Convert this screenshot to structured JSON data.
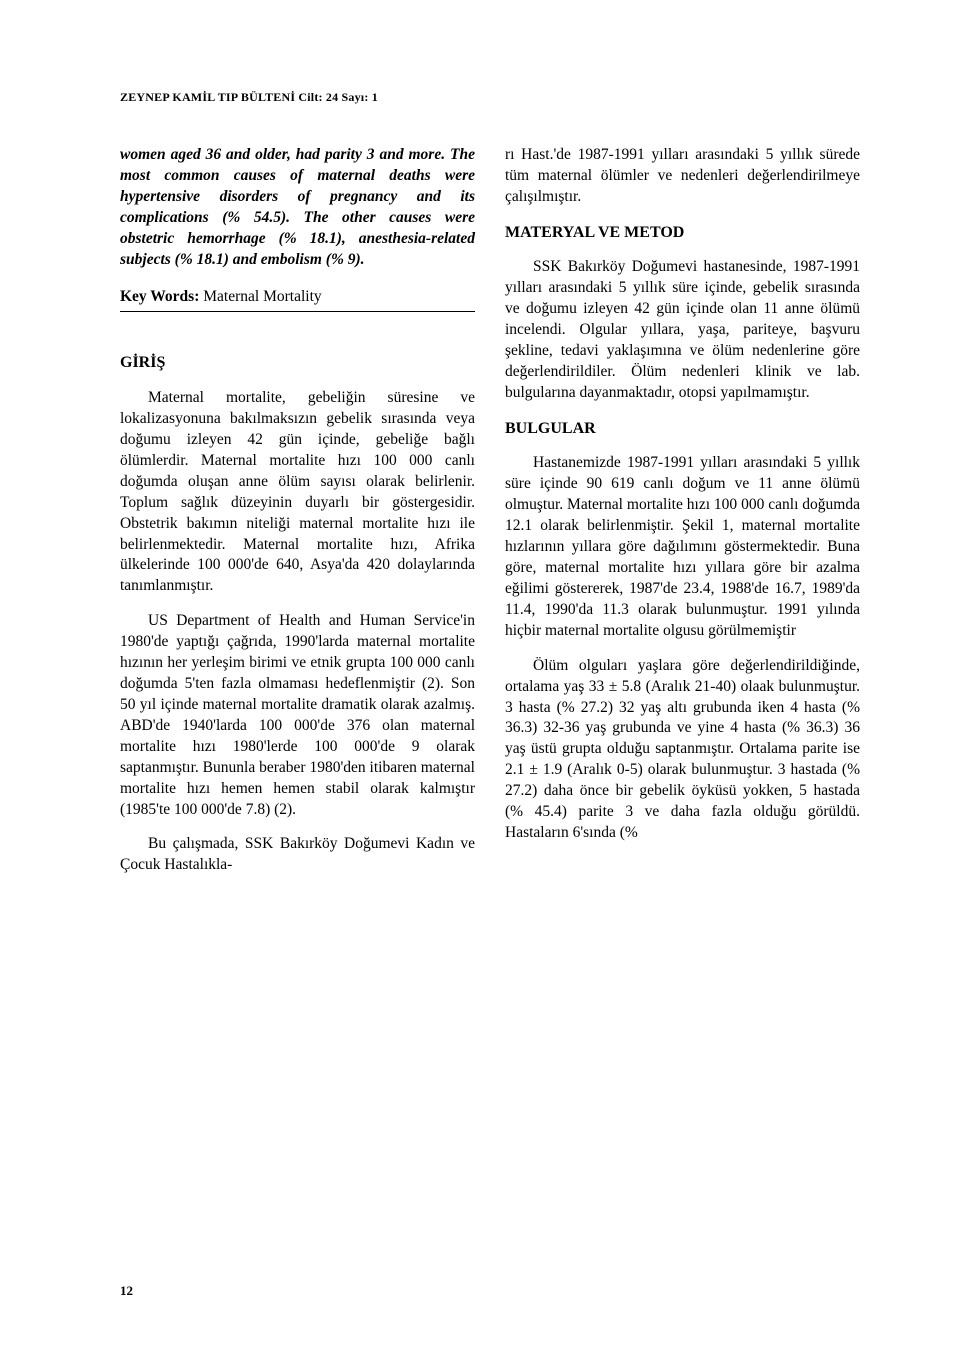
{
  "header": "ZEYNEP KAMİL TIP BÜLTENİ  Cilt: 24 Sayı: 1",
  "left_column": {
    "abstract": "women aged 36 and older, had parity 3 and more. The most common causes of maternal deaths were hypertensive disorders of pregnancy and its complications (% 54.5). The other causes were obstetric hemorrhage (% 18.1), anesthesia-related subjects (% 18.1) and embolism (% 9).",
    "keywords_label": "Key Words: ",
    "keywords_value": "Maternal Mortality",
    "heading_1": "GİRİŞ",
    "para_1": "Maternal mortalite, gebeliğin süresine ve lokalizasyonuna bakılmaksızın gebelik sırasında veya doğumu izleyen 42 gün içinde, gebeliğe bağlı ölümlerdir. Maternal mortalite hızı 100 000 canlı doğumda oluşan anne ölüm sayısı olarak belirlenir. Toplum sağlık düzeyinin duyarlı bir göstergesidir. Obstetrik bakımın niteliği maternal mortalite hızı ile belirlenmektedir. Maternal mortalite hızı, Afrika ülkelerinde 100 000'de 640, Asya'da 420 dolaylarında tanımlanmıştır.",
    "para_2": "US Department of Health and Human Service'in 1980'de yaptığı çağrıda, 1990'larda maternal mortalite hızının her yerleşim birimi ve etnik grupta 100 000 canlı doğumda 5'ten fazla olmaması hedeflenmiştir (2). Son 50 yıl içinde maternal mortalite dramatik olarak azalmış. ABD'de 1940'larda 100 000'de 376 olan maternal mortalite hızı 1980'lerde 100 000'de 9 olarak saptanmıştır. Bununla beraber 1980'den itibaren maternal mortalite hızı hemen hemen stabil olarak kalmıştır (1985'te 100 000'de 7.8) (2).",
    "para_3": "Bu çalışmada, SSK Bakırköy Doğumevi Kadın ve Çocuk Hastalıkla-"
  },
  "right_column": {
    "para_1": "rı Hast.'de 1987-1991 yılları arasındaki 5 yıllık sürede tüm maternal ölümler ve nedenleri değerlendirilmeye çalışılmıştır.",
    "heading_1": "MATERYAL VE METOD",
    "para_2": "SSK Bakırköy Doğumevi hastanesinde, 1987-1991 yılları arasındaki 5 yıllık süre içinde, gebelik sırasında ve doğumu izleyen 42 gün içinde olan 11 anne ölümü incelendi. Olgular yıllara, yaşa, pariteye, başvuru şekline, tedavi yaklaşımına ve ölüm nedenlerine göre değerlendirildiler. Ölüm nedenleri klinik ve lab. bulgularına dayanmaktadır, otopsi yapılmamıştır.",
    "heading_2": "BULGULAR",
    "para_3": "Hastanemizde 1987-1991 yılları arasındaki 5 yıllık süre içinde 90 619 canlı doğum ve 11 anne ölümü olmuştur. Maternal mortalite hızı 100 000 canlı doğumda 12.1 olarak belirlenmiştir. Şekil 1, maternal mortalite hızlarının yıllara göre dağılımını göstermektedir. Buna göre, maternal mortalite hızı yıllara göre bir azalma eğilimi göstererek, 1987'de 23.4, 1988'de 16.7, 1989'da 11.4, 1990'da 11.3 olarak bulunmuştur. 1991 yılında hiçbir maternal mortalite olgusu görülmemiştir",
    "para_4": "Ölüm olguları yaşlara göre değerlendirildiğinde, ortalama yaş 33 ± 5.8 (Aralık 21-40) olaak bulunmuştur. 3 hasta (% 27.2) 32 yaş altı grubunda iken 4 hasta (% 36.3) 32-36 yaş grubunda ve yine 4 hasta (% 36.3) 36 yaş üstü grupta olduğu saptanmıştır. Ortalama parite ise 2.1 ± 1.9 (Aralık 0-5) olarak bulunmuştur. 3 hastada (% 27.2) daha önce bir gebelik öyküsü yokken, 5 hastada (% 45.4) parite 3 ve daha fazla olduğu görüldü. Hastaların 6'sında (%"
  },
  "page_number": "12"
}
